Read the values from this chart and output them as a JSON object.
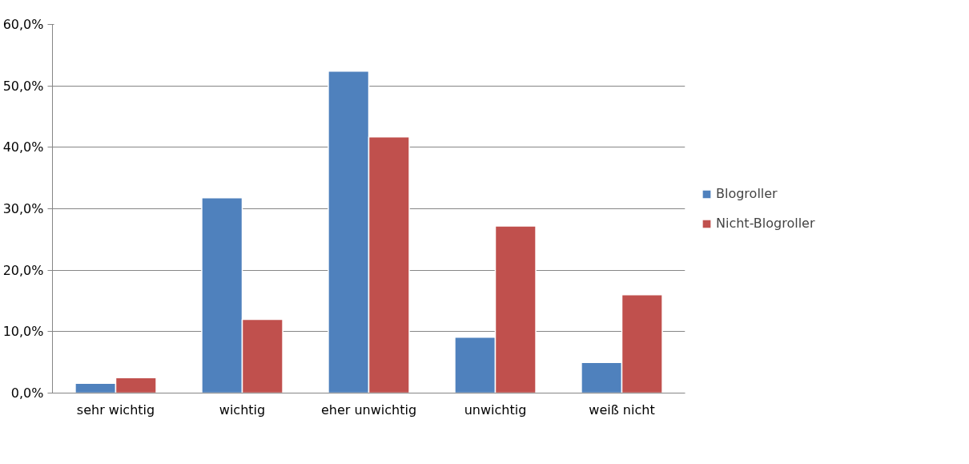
{
  "chart_data": {
    "type": "bar",
    "categories": [
      "sehr wichtig",
      "wichtig",
      "eher unwichtig",
      "unwichtig",
      "weiß nicht"
    ],
    "series": [
      {
        "name": "Blogroller",
        "color": "#4f81bd",
        "values": [
          1.6,
          31.8,
          52.4,
          9.1,
          5.0
        ]
      },
      {
        "name": "Nicht-Blogroller",
        "color": "#c0504d",
        "values": [
          2.5,
          12.0,
          41.7,
          27.2,
          16.0
        ]
      }
    ],
    "ylim": [
      0,
      60
    ],
    "yticks": [
      {
        "value": 0,
        "label": "0,0%"
      },
      {
        "value": 10,
        "label": "10,0%"
      },
      {
        "value": 20,
        "label": "20,0%"
      },
      {
        "value": 30,
        "label": "30,0%"
      },
      {
        "value": 40,
        "label": "40,0%"
      },
      {
        "value": 50,
        "label": "50,0%"
      },
      {
        "value": 60,
        "label": "60,0%"
      }
    ],
    "grid": "y",
    "legend": "right"
  }
}
